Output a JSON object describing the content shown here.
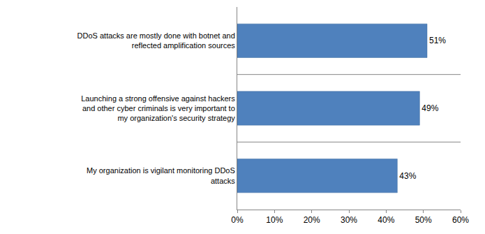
{
  "chart_data": {
    "type": "bar",
    "orientation": "horizontal",
    "categories": [
      "DDoS attacks are mostly done with botnet and reflected amplification sources",
      "Launching a strong offensive against hackers and other cyber criminals is very important to my organization's security strategy",
      "My organization is vigilant monitoring DDoS attacks"
    ],
    "values": [
      51,
      49,
      43
    ],
    "value_labels": [
      "51%",
      "49%",
      "43%"
    ],
    "color": "#4f81bd",
    "xlim": [
      0,
      60
    ],
    "xticks": [
      {
        "value": 0,
        "label": "0%"
      },
      {
        "value": 10,
        "label": "10%"
      },
      {
        "value": 20,
        "label": "20%"
      },
      {
        "value": 30,
        "label": "30%"
      },
      {
        "value": 40,
        "label": "40%"
      },
      {
        "value": 50,
        "label": "50%"
      },
      {
        "value": 60,
        "label": "60%"
      }
    ],
    "grid": false,
    "data_labels": true
  }
}
